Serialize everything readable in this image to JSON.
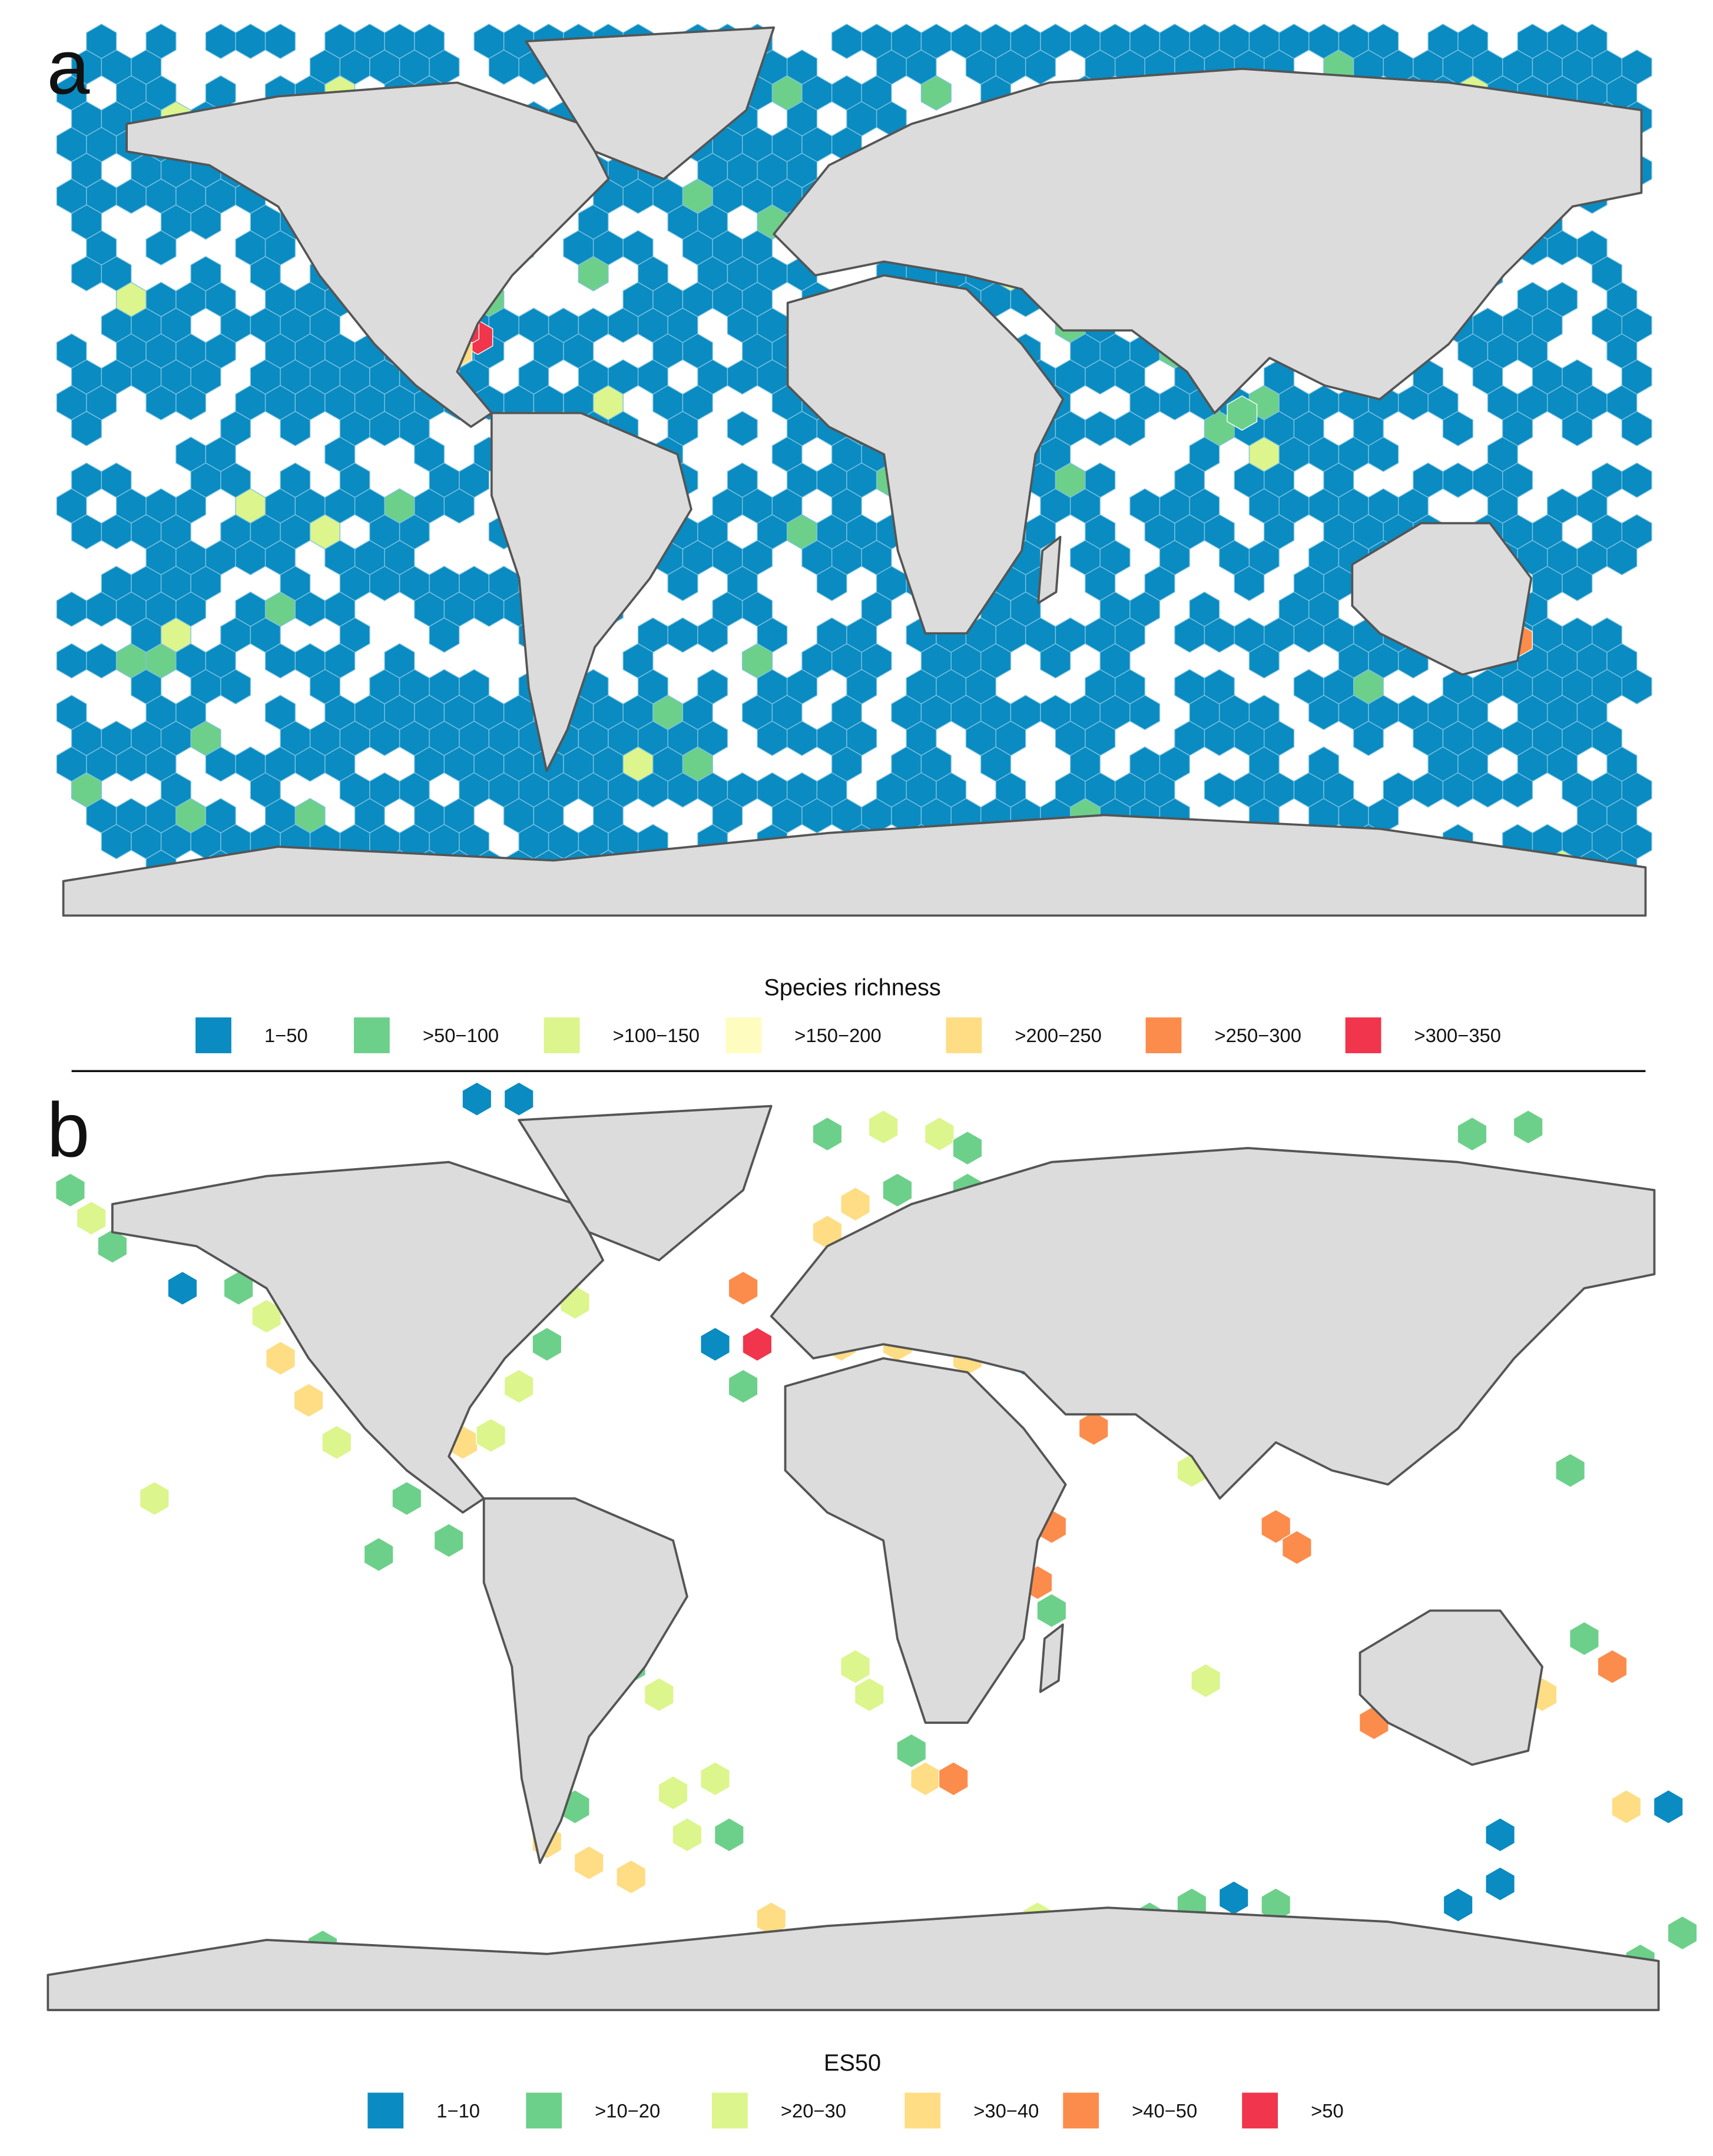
{
  "panels": [
    {
      "label": "a",
      "legend": {
        "title": "Species richness",
        "items": [
          {
            "label": "1−50",
            "color": "#0a8bc1"
          },
          {
            "label": ">50−100",
            "color": "#6dd08a"
          },
          {
            "label": ">100−150",
            "color": "#dcf58c"
          },
          {
            "label": ">150−200",
            "color": "#fffcc0"
          },
          {
            "label": ">200−250",
            "color": "#fedd84"
          },
          {
            "label": ">250−300",
            "color": "#fc8c4b"
          },
          {
            "label": ">300−350",
            "color": "#f0354c"
          }
        ]
      }
    },
    {
      "label": "b",
      "legend": {
        "title": "ES50",
        "items": [
          {
            "label": "1−10",
            "color": "#0a8bc1"
          },
          {
            "label": ">10−20",
            "color": "#6dd08a"
          },
          {
            "label": ">20−30",
            "color": "#dcf58c"
          },
          {
            "label": ">30−40",
            "color": "#fedd84"
          },
          {
            "label": ">40−50",
            "color": "#fc8c4b"
          },
          {
            "label": ">50",
            "color": "#f0354c"
          }
        ]
      }
    }
  ]
}
